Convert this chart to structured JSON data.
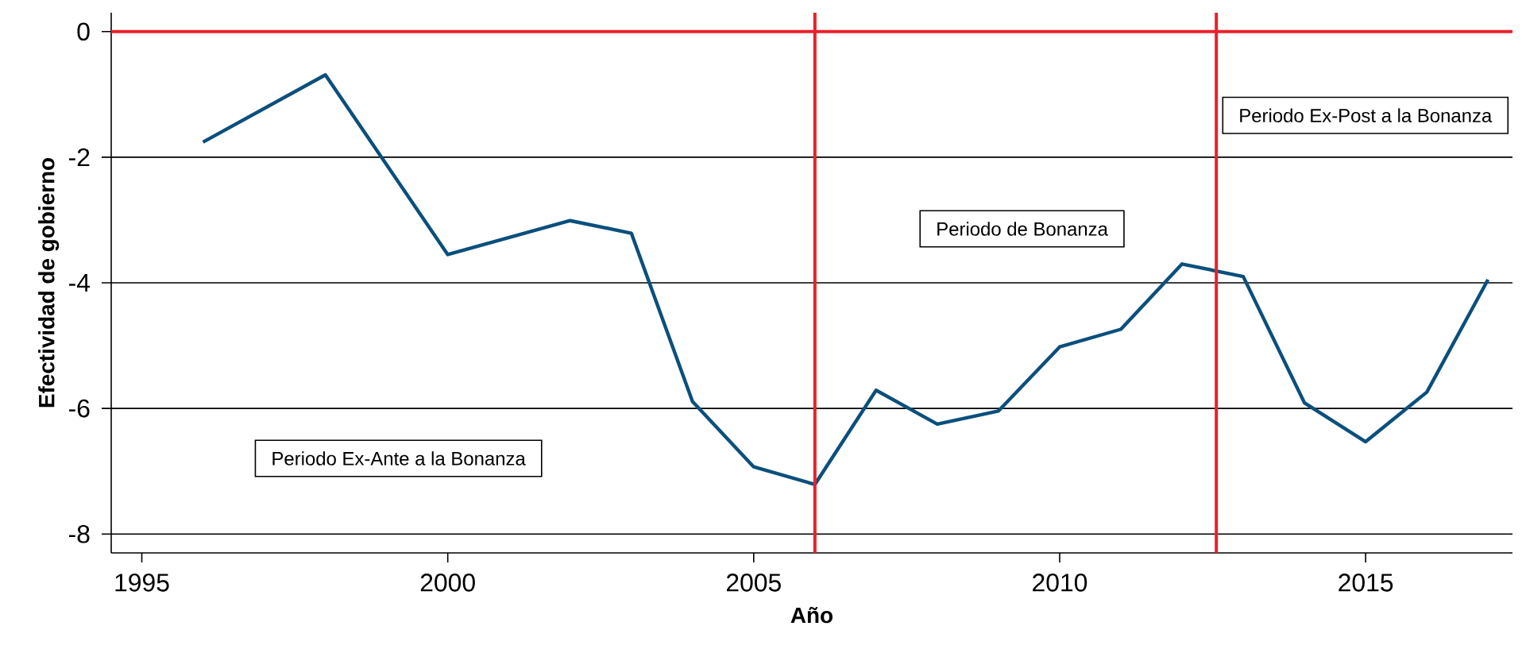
{
  "chart_data": {
    "type": "line",
    "xlabel": "Año",
    "ylabel": "Efectividad de gobierno",
    "x": [
      1996,
      1998,
      2000,
      2002,
      2003,
      2004,
      2005,
      2006,
      2007,
      2008,
      2009,
      2010,
      2011,
      2012,
      2013,
      2014,
      2015,
      2016,
      2017
    ],
    "series": [
      {
        "color": "#0b4f7c",
        "values": [
          -1.76,
          -0.69,
          -3.55,
          -3.01,
          -3.21,
          -5.89,
          -6.93,
          -7.21,
          -5.71,
          -6.25,
          -6.04,
          -5.02,
          -4.74,
          -3.7,
          -3.9,
          -5.91,
          -6.53,
          -5.74,
          -3.95
        ]
      }
    ],
    "xlim": [
      1994.5,
      2017.4
    ],
    "ylim": [
      -8.3,
      0.3
    ],
    "xticks": [
      1995,
      2000,
      2005,
      2010,
      2015
    ],
    "yticks": [
      -8,
      -6,
      -4,
      -2,
      0
    ],
    "grid": "y",
    "ref_lines": [
      {
        "axis": "y",
        "value": 0,
        "color": "#e8212b"
      },
      {
        "axis": "x",
        "value": 2006,
        "color": "#e8212b"
      },
      {
        "axis": "x",
        "value": 2012.56,
        "color": "#e8212b"
      }
    ],
    "annotations": [
      "Periodo Ex-Ante a la Bonanza",
      "Periodo de Bonanza",
      "Periodo Ex-Post a la Bonanza"
    ]
  }
}
